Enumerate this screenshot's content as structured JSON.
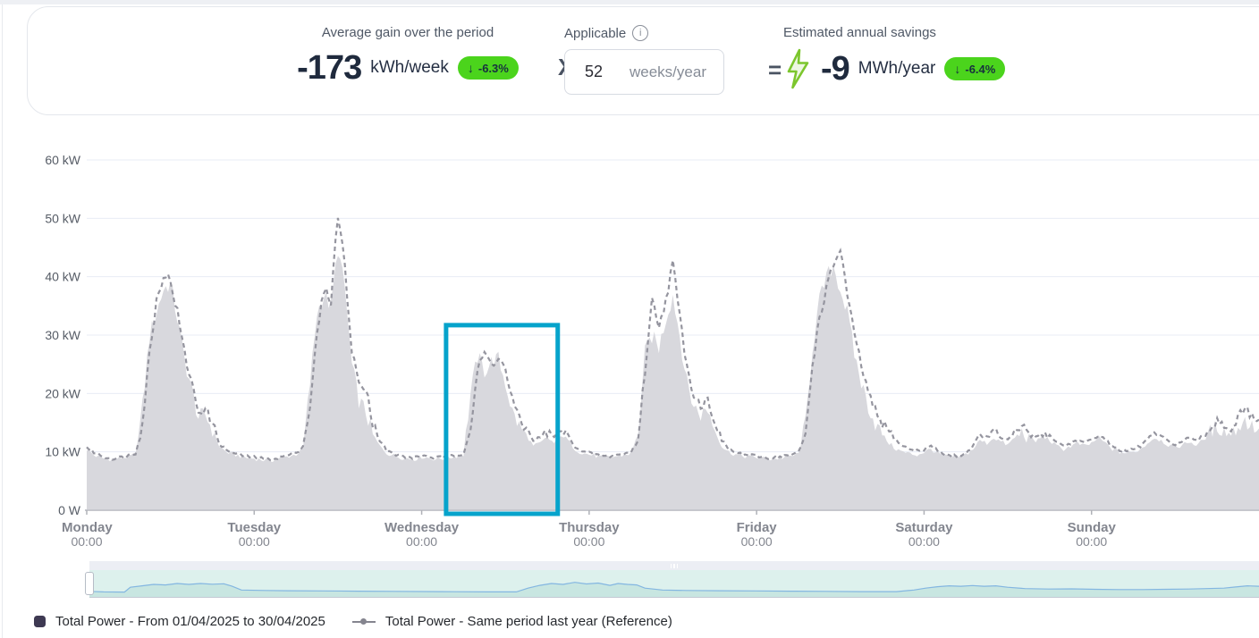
{
  "icons": {
    "info": "i",
    "down_arrow": "↓",
    "multiply": "X",
    "equals": "=",
    "bolt": "lightning"
  },
  "header": {
    "gain": {
      "label": "Average gain over the period",
      "value": "-173",
      "unit": "kWh/week",
      "badge_arrow": "↓",
      "badge": "-6.3%"
    },
    "applicable": {
      "label": "Applicable",
      "input_value": "52",
      "input_unit": "weeks/year"
    },
    "savings": {
      "label": "Estimated annual savings",
      "value": "-9",
      "unit": "MWh/year",
      "badge_arrow": "↓",
      "badge": "-6.4%"
    },
    "badge_color": "#4bd41c",
    "bolt_stroke": "#7cc62d",
    "bolt_fill": "#edf7e2"
  },
  "chart_data": {
    "type": "area",
    "title": "",
    "xlabel": "",
    "ylabel": "",
    "ylim": [
      0,
      60
    ],
    "grid": true,
    "legend_position": "bottom",
    "yticks": [
      "60 kW",
      "50 kW",
      "40 kW",
      "30 kW",
      "20 kW",
      "10 kW",
      "0 W"
    ],
    "x_categories": [
      {
        "day": "Monday",
        "time": "00:00"
      },
      {
        "day": "Tuesday",
        "time": "00:00"
      },
      {
        "day": "Wednesday",
        "time": "00:00"
      },
      {
        "day": "Thursday",
        "time": "00:00"
      },
      {
        "day": "Friday",
        "time": "00:00"
      },
      {
        "day": "Saturday",
        "time": "00:00"
      },
      {
        "day": "Sunday",
        "time": "00:00"
      }
    ],
    "series": [
      {
        "name": "Total Power - From 01/04/2025 to 30/04/2025",
        "style": "area",
        "color": "#d8d8dd",
        "unit": "kW",
        "values_kw_hourly": [
          10.5,
          9.5,
          9.0,
          8.8,
          8.8,
          9.0,
          9.2,
          9.6,
          18,
          30,
          34,
          38,
          39,
          33,
          26,
          21,
          16,
          16.5,
          14,
          11,
          10,
          9.6,
          9.3,
          9.0,
          8.9,
          8.7,
          8.5,
          8.7,
          9.0,
          9.3,
          9.6,
          10.5,
          22,
          34,
          37,
          35,
          45,
          38,
          25,
          19,
          17,
          13,
          11,
          9.8,
          9.4,
          9.1,
          8.9,
          8.8,
          9.2,
          9.0,
          8.8,
          8.9,
          9.1,
          9.3,
          9.6,
          20,
          26.5,
          24,
          25.5,
          26,
          22,
          17,
          14.5,
          13,
          11,
          11.5,
          12.5,
          11.5,
          13,
          12,
          10.5,
          9.8,
          9.6,
          9.3,
          9.1,
          9.1,
          9.3,
          9.5,
          9.8,
          13,
          27,
          30,
          28,
          33,
          37,
          30,
          22,
          18,
          16.5,
          17.5,
          14,
          11,
          10,
          9.6,
          9.3,
          9.2,
          9.1,
          8.9,
          8.8,
          8.9,
          9.1,
          9.3,
          9.7,
          15,
          28,
          36,
          40,
          42,
          38,
          34,
          27,
          22,
          18,
          15,
          13,
          11.5,
          10.5,
          10,
          9.7,
          9.5,
          10,
          10.5,
          9.8,
          9.3,
          9.1,
          9.2,
          9.6,
          10.5,
          12,
          11.5,
          12.5,
          11.8,
          11.2,
          12.5,
          13.5,
          12.8,
          11.8,
          12.8,
          12,
          11,
          10.5,
          11,
          11.5,
          11,
          11.5,
          12.5,
          11.5,
          10.5,
          10,
          9.8,
          10,
          10.5,
          11.5,
          12.5,
          12,
          11.2,
          10.8,
          11.2,
          11.8,
          11.2,
          12,
          13.5,
          14.5,
          13.8,
          13,
          14.5,
          15.5,
          14.5,
          14
        ]
      },
      {
        "name": "Total Power - Same period last year (Reference)",
        "style": "dashed-line",
        "color": "#95959f",
        "unit": "kW",
        "values_kw_hourly": [
          10.8,
          10.0,
          9.4,
          9.0,
          8.9,
          9.1,
          9.4,
          9.8,
          15,
          27,
          36,
          40.5,
          39.5,
          34,
          27,
          22,
          17,
          17.5,
          15,
          11.5,
          10.3,
          9.8,
          9.5,
          9.2,
          9.1,
          8.9,
          8.7,
          8.9,
          9.2,
          9.5,
          9.9,
          11,
          18,
          30,
          38,
          36,
          51,
          42,
          27,
          22,
          21.5,
          15,
          12,
          10.2,
          9.6,
          9.3,
          9.1,
          9.0,
          9.4,
          9.2,
          9.0,
          9.1,
          9.3,
          9.5,
          9.8,
          14,
          24,
          27,
          25,
          26.5,
          24,
          19,
          15.5,
          14,
          12,
          12.5,
          13.5,
          12.5,
          13.8,
          12.8,
          11,
          10,
          9.8,
          9.5,
          9.3,
          9.3,
          9.5,
          9.7,
          10,
          12,
          24,
          36,
          32,
          36,
          42.5,
          33,
          25,
          20,
          18,
          19,
          15.5,
          12,
          10.5,
          9.9,
          9.6,
          9.4,
          9.3,
          9.1,
          9.0,
          9.1,
          9.3,
          9.5,
          9.9,
          13,
          25,
          33,
          38,
          42,
          45,
          37,
          30,
          25,
          20,
          17,
          15,
          13.5,
          12,
          11,
          10.5,
          10.2,
          10.5,
          11,
          10.2,
          9.6,
          9.3,
          9.4,
          9.8,
          11,
          13,
          12.5,
          13.5,
          12.5,
          12,
          13.2,
          14.5,
          13.5,
          12.5,
          13.5,
          12.8,
          11.8,
          11,
          11.5,
          12,
          11.5,
          12,
          13,
          12,
          11,
          10.4,
          10.1,
          10.4,
          11,
          12.2,
          13.2,
          12.6,
          11.8,
          11.4,
          11.8,
          12.4,
          11.8,
          12.8,
          14.2,
          15.5,
          14.8,
          14,
          15.8,
          17.5,
          16,
          15.5
        ]
      }
    ],
    "selection": {
      "start_hour": 51.5,
      "end_hour": 67.5,
      "top_kw": 31.7,
      "color": "#06a3cb"
    },
    "axis_colors": {
      "grid": "#e8ecf5",
      "axis_line": "#c6c7cd",
      "tick": "#b0b2b8",
      "y_label": "#565c66",
      "x_label": "#83868f"
    }
  },
  "navigator": {
    "colors": {
      "background": "#ddf1ed",
      "area_fill": "#c8e6e1",
      "line": "#83b6e1"
    },
    "points": [
      [
        0,
        0.16
      ],
      [
        0.012,
        0.14
      ],
      [
        0.03,
        0.13
      ],
      [
        0.035,
        0.34
      ],
      [
        0.045,
        0.4
      ],
      [
        0.055,
        0.46
      ],
      [
        0.065,
        0.44
      ],
      [
        0.075,
        0.5
      ],
      [
        0.085,
        0.46
      ],
      [
        0.095,
        0.5
      ],
      [
        0.105,
        0.47
      ],
      [
        0.115,
        0.49
      ],
      [
        0.122,
        0.38
      ],
      [
        0.13,
        0.22
      ],
      [
        0.15,
        0.2
      ],
      [
        0.17,
        0.19
      ],
      [
        0.2,
        0.18
      ],
      [
        0.23,
        0.17
      ],
      [
        0.26,
        0.16
      ],
      [
        0.3,
        0.15
      ],
      [
        0.34,
        0.14
      ],
      [
        0.365,
        0.14
      ],
      [
        0.375,
        0.3
      ],
      [
        0.385,
        0.42
      ],
      [
        0.395,
        0.5
      ],
      [
        0.405,
        0.46
      ],
      [
        0.415,
        0.55
      ],
      [
        0.425,
        0.48
      ],
      [
        0.435,
        0.52
      ],
      [
        0.445,
        0.42
      ],
      [
        0.452,
        0.5
      ],
      [
        0.46,
        0.46
      ],
      [
        0.468,
        0.44
      ],
      [
        0.475,
        0.3
      ],
      [
        0.49,
        0.22
      ],
      [
        0.51,
        0.2
      ],
      [
        0.54,
        0.19
      ],
      [
        0.57,
        0.18
      ],
      [
        0.6,
        0.17
      ],
      [
        0.63,
        0.16
      ],
      [
        0.66,
        0.15
      ],
      [
        0.69,
        0.15
      ],
      [
        0.705,
        0.22
      ],
      [
        0.715,
        0.3
      ],
      [
        0.725,
        0.36
      ],
      [
        0.735,
        0.4
      ],
      [
        0.745,
        0.38
      ],
      [
        0.755,
        0.41
      ],
      [
        0.765,
        0.38
      ],
      [
        0.775,
        0.4
      ],
      [
        0.785,
        0.34
      ],
      [
        0.8,
        0.28
      ],
      [
        0.82,
        0.26
      ],
      [
        0.84,
        0.27
      ],
      [
        0.86,
        0.25
      ],
      [
        0.88,
        0.24
      ],
      [
        0.9,
        0.24
      ],
      [
        0.92,
        0.25
      ],
      [
        0.94,
        0.26
      ],
      [
        0.955,
        0.28
      ],
      [
        0.97,
        0.3
      ],
      [
        0.98,
        0.35
      ],
      [
        0.99,
        0.4
      ],
      [
        1,
        0.38
      ]
    ]
  },
  "legend": {
    "items": [
      {
        "label": "Total Power - From 01/04/2025 to 30/04/2025",
        "marker": "square",
        "color": "#3e3952"
      },
      {
        "label": "Total Power - Same period last year (Reference)",
        "marker": "line-dot",
        "color": "#85858f"
      }
    ]
  }
}
